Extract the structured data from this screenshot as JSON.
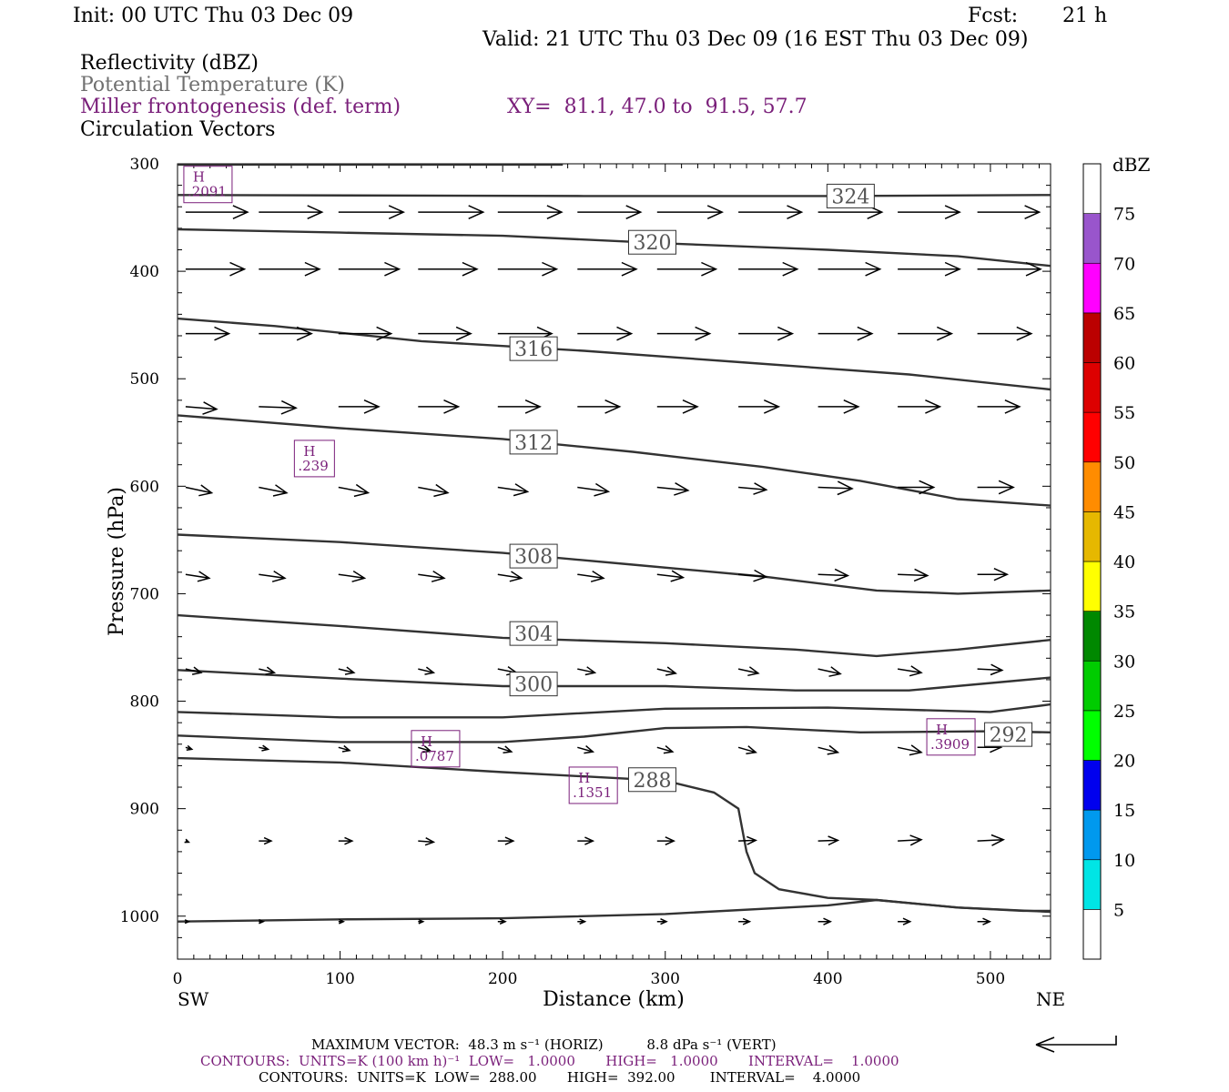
{
  "header": {
    "init": "Init: 00 UTC Thu 03 Dec 09",
    "fcst_label": "Fcst:",
    "fcst_value": "21 h",
    "valid": "Valid: 21 UTC Thu 03 Dec 09 (16 EST Thu 03 Dec 09)",
    "field1": "Reflectivity (dBZ)",
    "field2": "Potential Temperature (K)",
    "field3": "Miller frontogenesis (def. term)",
    "xy": "XY=  81.1, 47.0 to  91.5, 57.7",
    "field4": "Circulation Vectors"
  },
  "colors": {
    "purple": "#7a1f7a",
    "theta_line": "#333333",
    "grey_text": "#707070"
  },
  "chart_data": {
    "type": "cross-section",
    "xlabel": "Distance (km)",
    "ylabel": "Pressure (hPa)",
    "xlim": [
      0,
      537
    ],
    "ylim": [
      1040,
      300
    ],
    "x_ticks": [
      0,
      100,
      200,
      300,
      400,
      500
    ],
    "y_ticks": [
      300,
      400,
      500,
      600,
      700,
      800,
      900,
      1000
    ],
    "x_end_labels": {
      "left": "SW",
      "right": "NE"
    },
    "theta_contours": [
      {
        "label": "324",
        "label_at": [
          414,
          330
        ],
        "points": [
          [
            0,
            329
          ],
          [
            250,
            330
          ],
          [
            400,
            330
          ],
          [
            537,
            329
          ]
        ]
      },
      {
        "label": "320",
        "label_at": [
          292,
          373
        ],
        "points": [
          [
            0,
            361
          ],
          [
            100,
            364
          ],
          [
            200,
            367
          ],
          [
            300,
            374
          ],
          [
            400,
            380
          ],
          [
            480,
            386
          ],
          [
            537,
            395
          ]
        ]
      },
      {
        "label": "316",
        "label_at": [
          219,
          472
        ],
        "points": [
          [
            0,
            444
          ],
          [
            60,
            451
          ],
          [
            150,
            465
          ],
          [
            250,
            474
          ],
          [
            350,
            485
          ],
          [
            450,
            496
          ],
          [
            537,
            510
          ]
        ]
      },
      {
        "label": "312",
        "label_at": [
          219,
          559
        ],
        "points": [
          [
            0,
            534
          ],
          [
            100,
            546
          ],
          [
            200,
            556
          ],
          [
            280,
            568
          ],
          [
            360,
            582
          ],
          [
            420,
            595
          ],
          [
            480,
            612
          ],
          [
            537,
            618
          ]
        ]
      },
      {
        "label": "308",
        "label_at": [
          219,
          665
        ],
        "points": [
          [
            0,
            645
          ],
          [
            100,
            652
          ],
          [
            200,
            662
          ],
          [
            280,
            673
          ],
          [
            360,
            684
          ],
          [
            430,
            697
          ],
          [
            480,
            700
          ],
          [
            537,
            697
          ]
        ]
      },
      {
        "label": "304",
        "label_at": [
          219,
          737
        ],
        "points": [
          [
            0,
            720
          ],
          [
            100,
            730
          ],
          [
            200,
            741
          ],
          [
            300,
            746
          ],
          [
            380,
            752
          ],
          [
            430,
            758
          ],
          [
            480,
            752
          ],
          [
            537,
            743
          ]
        ]
      },
      {
        "label": "300",
        "label_at": [
          219,
          784
        ],
        "points": [
          [
            0,
            771
          ],
          [
            100,
            779
          ],
          [
            200,
            786
          ],
          [
            300,
            786
          ],
          [
            380,
            790
          ],
          [
            450,
            790
          ],
          [
            537,
            778
          ]
        ]
      },
      {
        "label": "",
        "label_at": null,
        "points": [
          [
            0,
            810
          ],
          [
            100,
            815
          ],
          [
            200,
            815
          ],
          [
            300,
            807
          ],
          [
            400,
            806
          ],
          [
            500,
            810
          ],
          [
            537,
            803
          ]
        ]
      },
      {
        "label": "292",
        "label_at": [
          511,
          831
        ],
        "points": [
          [
            0,
            832
          ],
          [
            100,
            838
          ],
          [
            200,
            838
          ],
          [
            250,
            833
          ],
          [
            300,
            825
          ],
          [
            350,
            824
          ],
          [
            420,
            829
          ],
          [
            500,
            828
          ],
          [
            537,
            829
          ]
        ]
      },
      {
        "label": "288",
        "label_at": [
          292,
          873
        ],
        "points": [
          [
            0,
            853
          ],
          [
            100,
            857
          ],
          [
            200,
            866
          ],
          [
            300,
            874
          ],
          [
            330,
            885
          ],
          [
            345,
            900
          ],
          [
            350,
            940
          ],
          [
            355,
            960
          ],
          [
            370,
            975
          ],
          [
            400,
            983
          ],
          [
            430,
            985
          ],
          [
            480,
            992
          ],
          [
            520,
            995
          ],
          [
            537,
            995
          ]
        ]
      },
      {
        "label": "",
        "label_at": null,
        "points": [
          [
            0,
            1005
          ],
          [
            100,
            1003
          ],
          [
            200,
            1002
          ],
          [
            300,
            998
          ],
          [
            400,
            990
          ],
          [
            430,
            985
          ],
          [
            480,
            992
          ],
          [
            537,
            996
          ]
        ]
      }
    ],
    "frontogenesis_maxima": [
      {
        "letter": "H",
        "value": ".2091",
        "at": [
          5,
          304
        ]
      },
      {
        "letter": "H",
        "value": ".239",
        "at": [
          73,
          559
        ]
      },
      {
        "letter": "H",
        "value": ".0787",
        "at": [
          145,
          829
        ]
      },
      {
        "letter": "H",
        "value": ".1351",
        "at": [
          242,
          863
        ]
      },
      {
        "letter": "H",
        "value": ".3909",
        "at": [
          462,
          818
        ]
      }
    ],
    "vector_columns_km": [
      5,
      50,
      99,
      148,
      197,
      246,
      295,
      345,
      394,
      443,
      492
    ],
    "vector_rows": [
      {
        "p": 345,
        "u": [
          1.0,
          1.02,
          1.05,
          1.05,
          1.03,
          1.02,
          1.05,
          1.02,
          1.03,
          1.0,
          1.0
        ],
        "v": [
          0,
          0,
          0,
          0,
          0,
          0,
          0,
          0,
          0,
          0,
          0
        ]
      },
      {
        "p": 398,
        "u": [
          0.95,
          0.98,
          0.98,
          0.95,
          0.95,
          0.95,
          0.95,
          0.95,
          1.0,
          1.0,
          1.02
        ],
        "v": [
          0,
          0,
          0,
          0,
          0,
          0,
          0,
          0,
          0,
          0,
          0
        ]
      },
      {
        "p": 458,
        "u": [
          0.7,
          0.85,
          0.85,
          0.85,
          0.87,
          0.87,
          0.85,
          0.87,
          0.87,
          0.87,
          0.87
        ],
        "v": [
          0,
          0,
          0,
          0,
          0,
          0,
          0,
          0,
          0,
          0,
          0
        ]
      },
      {
        "p": 526,
        "u": [
          0.5,
          0.6,
          0.65,
          0.65,
          0.68,
          0.68,
          0.65,
          0.65,
          0.65,
          0.68,
          0.68
        ],
        "v": [
          -0.04,
          -0.02,
          0,
          0,
          0,
          0,
          0,
          0,
          0,
          0,
          0
        ]
      },
      {
        "p": 601,
        "u": [
          0.42,
          0.45,
          0.48,
          0.48,
          0.48,
          0.5,
          0.5,
          0.45,
          0.55,
          0.58,
          0.58
        ],
        "v": [
          -0.09,
          -0.09,
          -0.09,
          -0.09,
          -0.07,
          -0.07,
          -0.05,
          -0.04,
          -0.02,
          0,
          0
        ]
      },
      {
        "p": 682,
        "u": [
          0.38,
          0.42,
          0.42,
          0.42,
          0.38,
          0.42,
          0.42,
          0.45,
          0.48,
          0.48,
          0.48
        ],
        "v": [
          -0.06,
          -0.06,
          -0.06,
          -0.06,
          -0.06,
          -0.06,
          -0.05,
          -0.04,
          -0.02,
          -0.02,
          0
        ]
      },
      {
        "p": 770,
        "u": [
          0.25,
          0.25,
          0.25,
          0.25,
          0.3,
          0.28,
          0.3,
          0.32,
          0.36,
          0.38,
          0.4
        ],
        "v": [
          -0.06,
          -0.06,
          -0.06,
          -0.06,
          -0.06,
          -0.06,
          -0.07,
          -0.07,
          -0.08,
          -0.06,
          -0.02
        ]
      },
      {
        "p": 843,
        "u": [
          0.1,
          0.15,
          0.18,
          0.2,
          0.22,
          0.25,
          0.25,
          0.28,
          0.32,
          0.38,
          0.38
        ],
        "v": [
          -0.03,
          -0.03,
          -0.05,
          -0.06,
          -0.07,
          -0.07,
          -0.07,
          -0.08,
          -0.08,
          -0.08,
          0
        ]
      },
      {
        "p": 930,
        "u": [
          0.05,
          0.2,
          0.22,
          0.25,
          0.25,
          0.25,
          0.27,
          0.28,
          0.32,
          0.38,
          0.42
        ],
        "v": [
          -0.02,
          0,
          0,
          -0.02,
          0,
          0,
          0,
          0.01,
          0.01,
          0.02,
          0.02
        ]
      },
      {
        "p": 1005,
        "u": [
          0.05,
          0.07,
          0.08,
          0.08,
          0.12,
          0.12,
          0.15,
          0.18,
          0.2,
          0.2,
          0.2
        ],
        "v": [
          0,
          0,
          0,
          0,
          0,
          0,
          0,
          0,
          0,
          0,
          0
        ]
      }
    ],
    "colorbar": {
      "unit": "dBZ",
      "labels": [
        "5",
        "10",
        "15",
        "20",
        "25",
        "30",
        "35",
        "40",
        "45",
        "50",
        "55",
        "60",
        "65",
        "70",
        "75"
      ],
      "colors": [
        "#ffffff",
        "#00e5e5",
        "#0099ee",
        "#0000ee",
        "#00ff00",
        "#00cc00",
        "#008800",
        "#ffff00",
        "#e6b800",
        "#ff8c00",
        "#ff0000",
        "#dd0000",
        "#bb0000",
        "#ff00ff",
        "#9955cc",
        "#ffffff"
      ]
    }
  },
  "footer": {
    "line1": "MAXIMUM VECTOR:  48.3 m s⁻¹ (HORIZ)          8.8 dPa s⁻¹ (VERT)",
    "line2": "CONTOURS:  UNITS=K (100 km h)⁻¹  LOW=   1.0000       HIGH=   1.0000       INTERVAL=    1.0000",
    "line3": "CONTOURS:  UNITS=K  LOW=  288.00       HIGH=  392.00        INTERVAL=    4.0000"
  }
}
